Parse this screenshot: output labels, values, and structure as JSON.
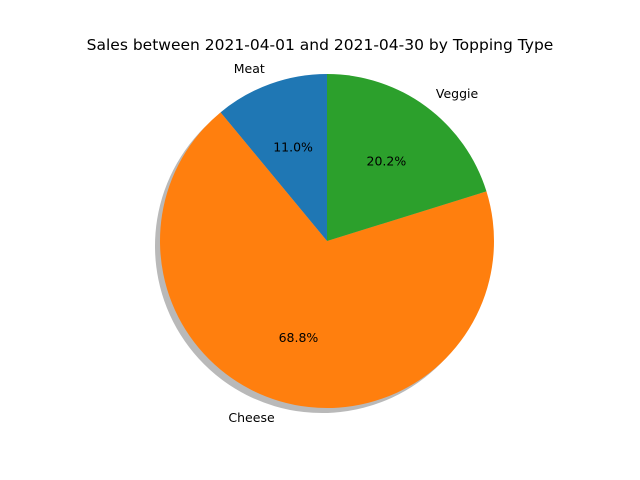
{
  "chart_data": {
    "type": "pie",
    "title": "Sales between 2021-04-01 and 2021-04-30 by Topping Type",
    "slices": [
      {
        "label": "Meat",
        "value": 11.0,
        "pct_label": "11.0%",
        "color": "#1f77b4"
      },
      {
        "label": "Cheese",
        "value": 68.8,
        "pct_label": "68.8%",
        "color": "#ff7f0e"
      },
      {
        "label": "Veggie",
        "value": 20.2,
        "pct_label": "20.2%",
        "color": "#2ca02c"
      }
    ],
    "start_angle_deg": 90,
    "direction": "counterclockwise",
    "shadow": true,
    "legend": "none"
  }
}
